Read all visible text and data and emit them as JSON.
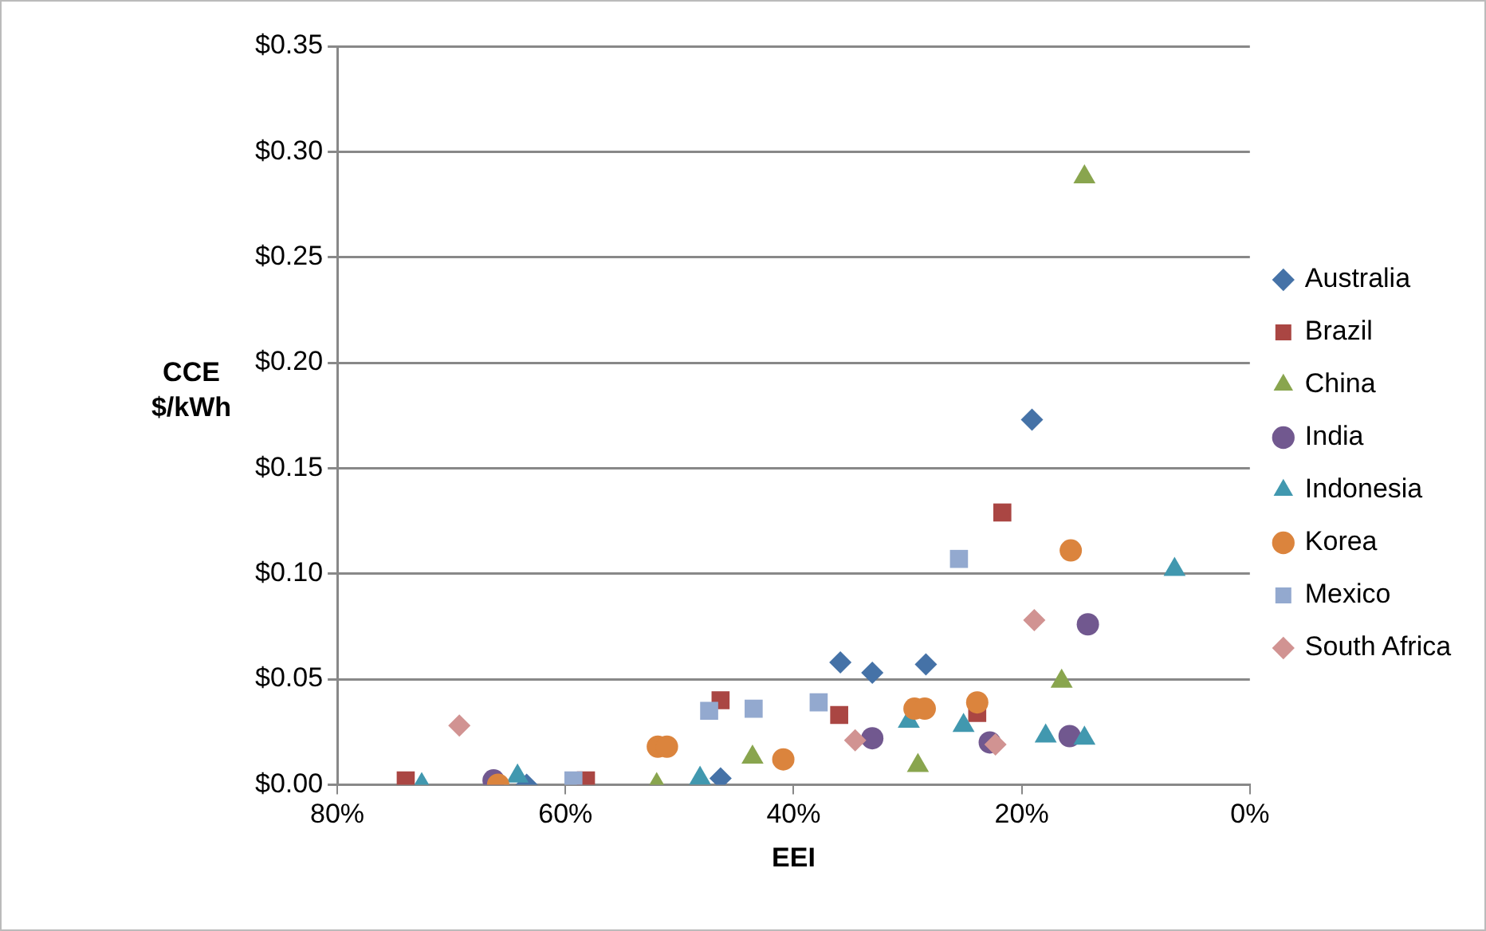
{
  "chart_data": {
    "type": "scatter",
    "xlabel": "EEI",
    "ylabel": "CCE $/kWh",
    "xlim": [
      80,
      0
    ],
    "ylim": [
      0,
      0.35
    ],
    "xticks": [
      {
        "value": 80,
        "label": "80%"
      },
      {
        "value": 60,
        "label": "60%"
      },
      {
        "value": 40,
        "label": "40%"
      },
      {
        "value": 20,
        "label": "20%"
      },
      {
        "value": 0,
        "label": "0%"
      }
    ],
    "yticks": [
      {
        "value": 0,
        "label": "$0.00"
      },
      {
        "value": 0.05,
        "label": "$0.05"
      },
      {
        "value": 0.1,
        "label": "$0.10"
      },
      {
        "value": 0.15,
        "label": "$0.15"
      },
      {
        "value": 0.2,
        "label": "$0.20"
      },
      {
        "value": 0.25,
        "label": "$0.25"
      },
      {
        "value": 0.3,
        "label": "$0.30"
      },
      {
        "value": 0.35,
        "label": "$0.35"
      }
    ],
    "grid": "y",
    "legend": "right",
    "series": [
      {
        "name": "Australia",
        "color": "#4572a7",
        "marker": "diamond",
        "x": [
          35.9,
          33.1,
          28.4,
          19.1,
          46.4,
          63.4
        ],
        "values": [
          0.058,
          0.053,
          0.057,
          0.173,
          0.003,
          0.0
        ]
      },
      {
        "name": "Brazil",
        "color": "#aa4643",
        "marker": "square",
        "x": [
          74.0,
          58.2,
          46.4,
          36.0,
          23.9,
          21.7
        ],
        "values": [
          0.002,
          0.002,
          0.04,
          0.033,
          0.034,
          0.129
        ]
      },
      {
        "name": "China",
        "color": "#89a54e",
        "marker": "triangle",
        "x": [
          52.0,
          43.6,
          29.1,
          16.5,
          14.5
        ],
        "values": [
          0.0,
          0.013,
          0.009,
          0.049,
          0.288
        ]
      },
      {
        "name": "India",
        "color": "#71588f",
        "marker": "circle",
        "x": [
          66.3,
          33.1,
          22.8,
          15.8,
          14.2
        ],
        "values": [
          0.002,
          0.022,
          0.02,
          0.023,
          0.076
        ]
      },
      {
        "name": "Indonesia",
        "color": "#4198af",
        "marker": "triangle",
        "x": [
          72.6,
          64.2,
          48.2,
          29.9,
          25.1,
          17.9,
          14.5,
          6.6
        ],
        "values": [
          0.0,
          0.004,
          0.003,
          0.03,
          0.028,
          0.023,
          0.022,
          0.102
        ]
      },
      {
        "name": "Korea",
        "color": "#db843d",
        "marker": "circle",
        "x": [
          65.9,
          51.9,
          51.1,
          40.9,
          29.4,
          28.5,
          23.9,
          15.7
        ],
        "values": [
          0.0,
          0.018,
          0.018,
          0.012,
          0.036,
          0.036,
          0.039,
          0.111
        ]
      },
      {
        "name": "Mexico",
        "color": "#93a9cf",
        "marker": "square",
        "x": [
          59.3,
          47.4,
          43.5,
          37.8,
          25.5
        ],
        "values": [
          0.002,
          0.035,
          0.036,
          0.039,
          0.107
        ]
      },
      {
        "name": "South Africa",
        "color": "#d19392",
        "marker": "diamond",
        "x": [
          69.3,
          34.6,
          22.3,
          18.9
        ],
        "values": [
          0.028,
          0.021,
          0.019,
          0.078
        ]
      }
    ]
  }
}
